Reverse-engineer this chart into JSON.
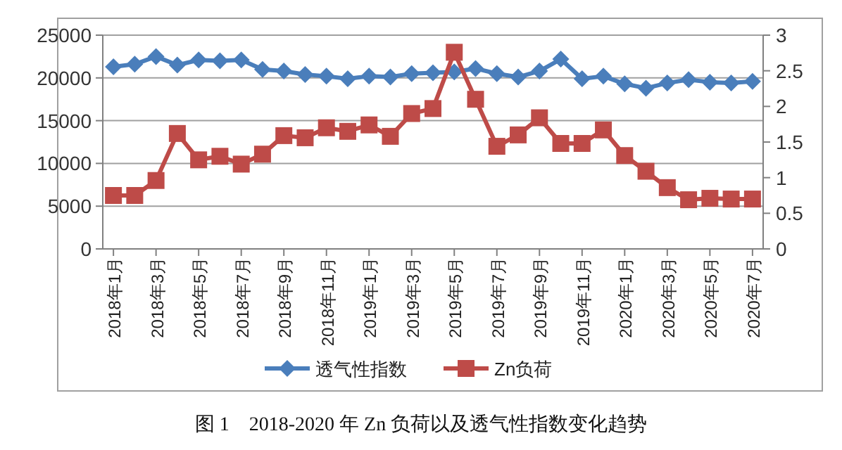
{
  "chart_data": {
    "type": "line",
    "title": "图 1　2018-2020 年 Zn 负荷以及透气性指数变化趋势",
    "categories": [
      "2018年1月",
      null,
      "2018年3月",
      null,
      "2018年5月",
      null,
      "2018年7月",
      null,
      "2018年9月",
      null,
      "2018年11月",
      null,
      "2019年1月",
      null,
      "2019年3月",
      null,
      "2019年5月",
      null,
      "2019年7月",
      null,
      "2019年9月",
      null,
      "2019年11月",
      null,
      "2020年1月",
      null,
      "2020年3月",
      null,
      "2020年5月",
      null,
      "2020年7月"
    ],
    "series": [
      {
        "name": "透气性指数",
        "color": "#4a7ebb",
        "marker": "diamond",
        "values": [
          21300,
          21600,
          22500,
          21500,
          22100,
          22000,
          22100,
          21000,
          20800,
          20400,
          20200,
          19900,
          20200,
          20100,
          20500,
          20600,
          20700,
          21100,
          20500,
          20100,
          20800,
          22200,
          19900,
          20200,
          19300,
          18800,
          19400,
          19800,
          19500,
          19400,
          19600
        ]
      },
      {
        "name": "Zn负荷",
        "color": "#be4b48",
        "marker": "square",
        "axis": "y2",
        "values": [
          0.75,
          0.75,
          0.96,
          1.62,
          1.25,
          1.3,
          1.19,
          1.33,
          1.59,
          1.56,
          1.7,
          1.65,
          1.74,
          1.58,
          1.9,
          1.97,
          2.76,
          2.1,
          1.44,
          1.6,
          1.84,
          1.48,
          1.48,
          1.67,
          1.31,
          1.09,
          0.86,
          0.69,
          0.71,
          0.7,
          0.7
        ]
      }
    ],
    "ylim": [
      0,
      25000
    ],
    "yticks": [
      0,
      5000,
      10000,
      15000,
      20000,
      25000
    ],
    "y2lim": [
      0,
      3
    ],
    "y2ticks": [
      0,
      0.5,
      1,
      1.5,
      2,
      2.5,
      3
    ],
    "grid": "y",
    "legend": "bottom"
  }
}
